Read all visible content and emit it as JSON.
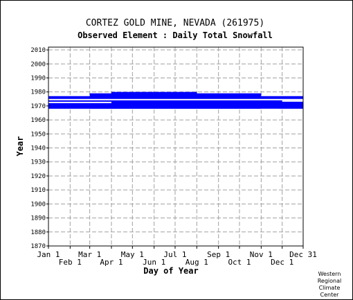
{
  "chart_data": {
    "type": "heatmap",
    "title": "CORTEZ GOLD MINE, NEVADA   (261975)",
    "subtitle": "Observed Element : Daily Total Snowfall",
    "xlabel": "Day of Year",
    "ylabel": "Year",
    "x_ticks_top_row": [
      "Jan 1",
      "Mar 1",
      "May 1",
      "Jul 1",
      "Sep 1",
      "Nov 1",
      "Dec 31"
    ],
    "x_ticks_bottom_row": [
      "Feb 1",
      "Apr 1",
      "Jun 1",
      "Aug 1",
      "Oct 1",
      "Dec 1"
    ],
    "y_ticks": [
      "1870",
      "1880",
      "1890",
      "1900",
      "1910",
      "1920",
      "1930",
      "1940",
      "1950",
      "1960",
      "1970",
      "1980",
      "1990",
      "2000",
      "2010"
    ],
    "xlim": [
      1,
      365
    ],
    "ylim": [
      1870,
      2012
    ],
    "grid": true,
    "data_color": "#0000ff",
    "periods_with_data": [
      {
        "start_day": 1,
        "end_day": 365,
        "start_year": 1968,
        "end_year": 1976
      },
      {
        "start_day": 60,
        "end_day": 305,
        "start_year": 1968,
        "end_year": 1978
      },
      {
        "start_day": 91,
        "end_day": 213,
        "start_year": 1968,
        "end_year": 1979
      }
    ],
    "gaps": [
      {
        "start_day": 1,
        "end_day": 365,
        "year": 1974
      },
      {
        "start_day": 1,
        "end_day": 91,
        "year": 1972
      },
      {
        "start_day": 335,
        "end_day": 365,
        "year": 1973
      },
      {
        "start_day": 305,
        "end_day": 330,
        "year": 1967
      }
    ]
  },
  "credit": [
    "Western",
    "Regional",
    "Climate",
    "Center"
  ]
}
